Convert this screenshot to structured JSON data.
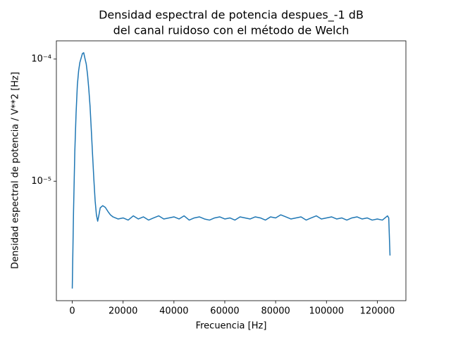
{
  "chart_data": {
    "type": "line",
    "title": [
      "Densidad espectral de potencia despues_-1 dB",
      "del canal ruidoso con el método de Welch"
    ],
    "xlabel": "Frecuencia [Hz]",
    "ylabel": "Densidad espectral de potencia / V**2 [Hz]",
    "log_y": true,
    "xlim": [
      -6250,
      131250
    ],
    "ylim": [
      1.05e-06,
      0.000141
    ],
    "xticks": [
      0,
      20000,
      40000,
      60000,
      80000,
      100000,
      120000
    ],
    "yticks": [
      {
        "value": 1e-05,
        "label": "10⁻⁵"
      },
      {
        "value": 0.0001,
        "label": "10⁻⁴"
      }
    ],
    "color": "#1f77b4",
    "x": [
      0,
      500,
      1000,
      1500,
      2000,
      2500,
      3000,
      4000,
      4500,
      5000,
      5500,
      6000,
      6500,
      7000,
      7500,
      8000,
      8500,
      9000,
      9500,
      10000,
      10500,
      11000,
      12000,
      13000,
      14000,
      15000,
      16000,
      18000,
      20000,
      22000,
      24000,
      26000,
      28000,
      30000,
      32000,
      34000,
      36000,
      38000,
      40000,
      42000,
      44000,
      46000,
      48000,
      50000,
      52000,
      54000,
      56000,
      58000,
      60000,
      62000,
      64000,
      66000,
      68000,
      70000,
      72000,
      74000,
      76000,
      78000,
      80000,
      82000,
      84000,
      86000,
      88000,
      90000,
      92000,
      94000,
      96000,
      98000,
      100000,
      102000,
      104000,
      106000,
      108000,
      110000,
      112000,
      114000,
      116000,
      118000,
      120000,
      122000,
      124000,
      124500,
      125000
    ],
    "values": [
      1.32e-06,
      5.66e-06,
      1.74e-05,
      3.6e-05,
      6.1e-05,
      8e-05,
      9.4e-05,
      0.000111,
      0.0001126,
      0.000101,
      9.1e-05,
      7.5e-05,
      5.7e-05,
      4.1e-05,
      2.6e-05,
      1.63e-05,
      1.03e-05,
      6.9e-06,
      5.3e-06,
      4.7e-06,
      5.3e-06,
      6.05e-06,
      6.3e-06,
      6.1e-06,
      5.66e-06,
      5.3e-06,
      5.1e-06,
      4.9e-06,
      5e-06,
      4.8e-06,
      5.2e-06,
      4.9e-06,
      5.1e-06,
      4.8e-06,
      5e-06,
      5.2e-06,
      4.9e-06,
      5e-06,
      5.1e-06,
      4.9e-06,
      5.2e-06,
      4.8e-06,
      5e-06,
      5.1e-06,
      4.9e-06,
      4.8e-06,
      5e-06,
      5.1e-06,
      4.9e-06,
      5e-06,
      4.8e-06,
      5.1e-06,
      5e-06,
      4.9e-06,
      5.1e-06,
      5e-06,
      4.8e-06,
      5.1e-06,
      5e-06,
      5.3e-06,
      5.1e-06,
      4.9e-06,
      5e-06,
      5.1e-06,
      4.8e-06,
      5e-06,
      5.2e-06,
      4.9e-06,
      5e-06,
      5.1e-06,
      4.9e-06,
      5e-06,
      4.8e-06,
      5e-06,
      5.1e-06,
      4.9e-06,
      5e-06,
      4.8e-06,
      4.9e-06,
      4.8e-06,
      5.2e-06,
      5e-06,
      2.46e-06
    ]
  }
}
